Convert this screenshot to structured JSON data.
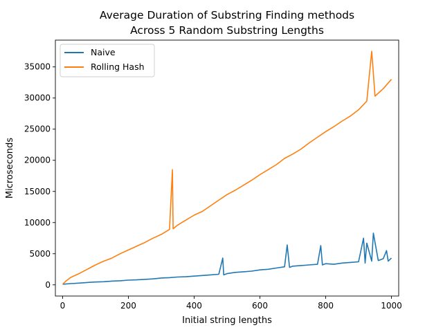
{
  "chart_data": {
    "type": "line",
    "title": [
      "Average Duration of Substring Finding methods",
      "Across 5 Random Substring Lengths"
    ],
    "xlabel": "Initial string lengths",
    "ylabel": "Microseconds",
    "xlim": [
      -22,
      1022
    ],
    "ylim": [
      -1800,
      39300
    ],
    "xticks": [
      0,
      200,
      400,
      600,
      800,
      1000
    ],
    "yticks": [
      0,
      5000,
      10000,
      15000,
      20000,
      25000,
      30000,
      35000
    ],
    "grid": false,
    "legend_position": "top-left",
    "series": [
      {
        "name": "Naive",
        "color": "#1f77b4",
        "x": [
          0,
          25,
          50,
          75,
          100,
          125,
          150,
          175,
          200,
          225,
          250,
          275,
          300,
          325,
          350,
          375,
          400,
          425,
          450,
          475,
          487,
          490,
          500,
          525,
          550,
          575,
          600,
          625,
          650,
          675,
          683,
          690,
          700,
          725,
          750,
          775,
          785,
          790,
          800,
          825,
          850,
          875,
          900,
          915,
          920,
          925,
          940,
          945,
          960,
          975,
          985,
          990,
          1000
        ],
        "y": [
          100,
          200,
          280,
          380,
          450,
          500,
          600,
          650,
          750,
          800,
          880,
          950,
          1100,
          1150,
          1250,
          1300,
          1400,
          1500,
          1600,
          1700,
          4300,
          1600,
          1800,
          2000,
          2100,
          2200,
          2400,
          2500,
          2700,
          2900,
          6400,
          2800,
          3000,
          3100,
          3200,
          3300,
          6300,
          3200,
          3400,
          3300,
          3500,
          3600,
          3700,
          7500,
          3500,
          6700,
          3800,
          8300,
          3900,
          4200,
          5500,
          3800,
          4300
        ]
      },
      {
        "name": "Rolling Hash",
        "color": "#ff7f0e",
        "x": [
          0,
          10,
          25,
          50,
          75,
          100,
          125,
          150,
          175,
          200,
          225,
          250,
          275,
          300,
          325,
          334,
          336,
          350,
          375,
          400,
          425,
          450,
          475,
          500,
          525,
          550,
          575,
          600,
          625,
          650,
          675,
          700,
          725,
          750,
          775,
          800,
          825,
          850,
          875,
          900,
          925,
          940,
          950,
          975,
          1000
        ],
        "y": [
          100,
          600,
          1200,
          1800,
          2500,
          3200,
          3800,
          4300,
          5000,
          5600,
          6200,
          6800,
          7500,
          8100,
          8900,
          18500,
          9000,
          9600,
          10400,
          11200,
          11800,
          12700,
          13600,
          14500,
          15200,
          16000,
          16800,
          17700,
          18500,
          19300,
          20300,
          21000,
          21800,
          22800,
          23700,
          24600,
          25400,
          26300,
          27100,
          28100,
          29500,
          37500,
          30300,
          31500,
          33000
        ]
      }
    ]
  }
}
